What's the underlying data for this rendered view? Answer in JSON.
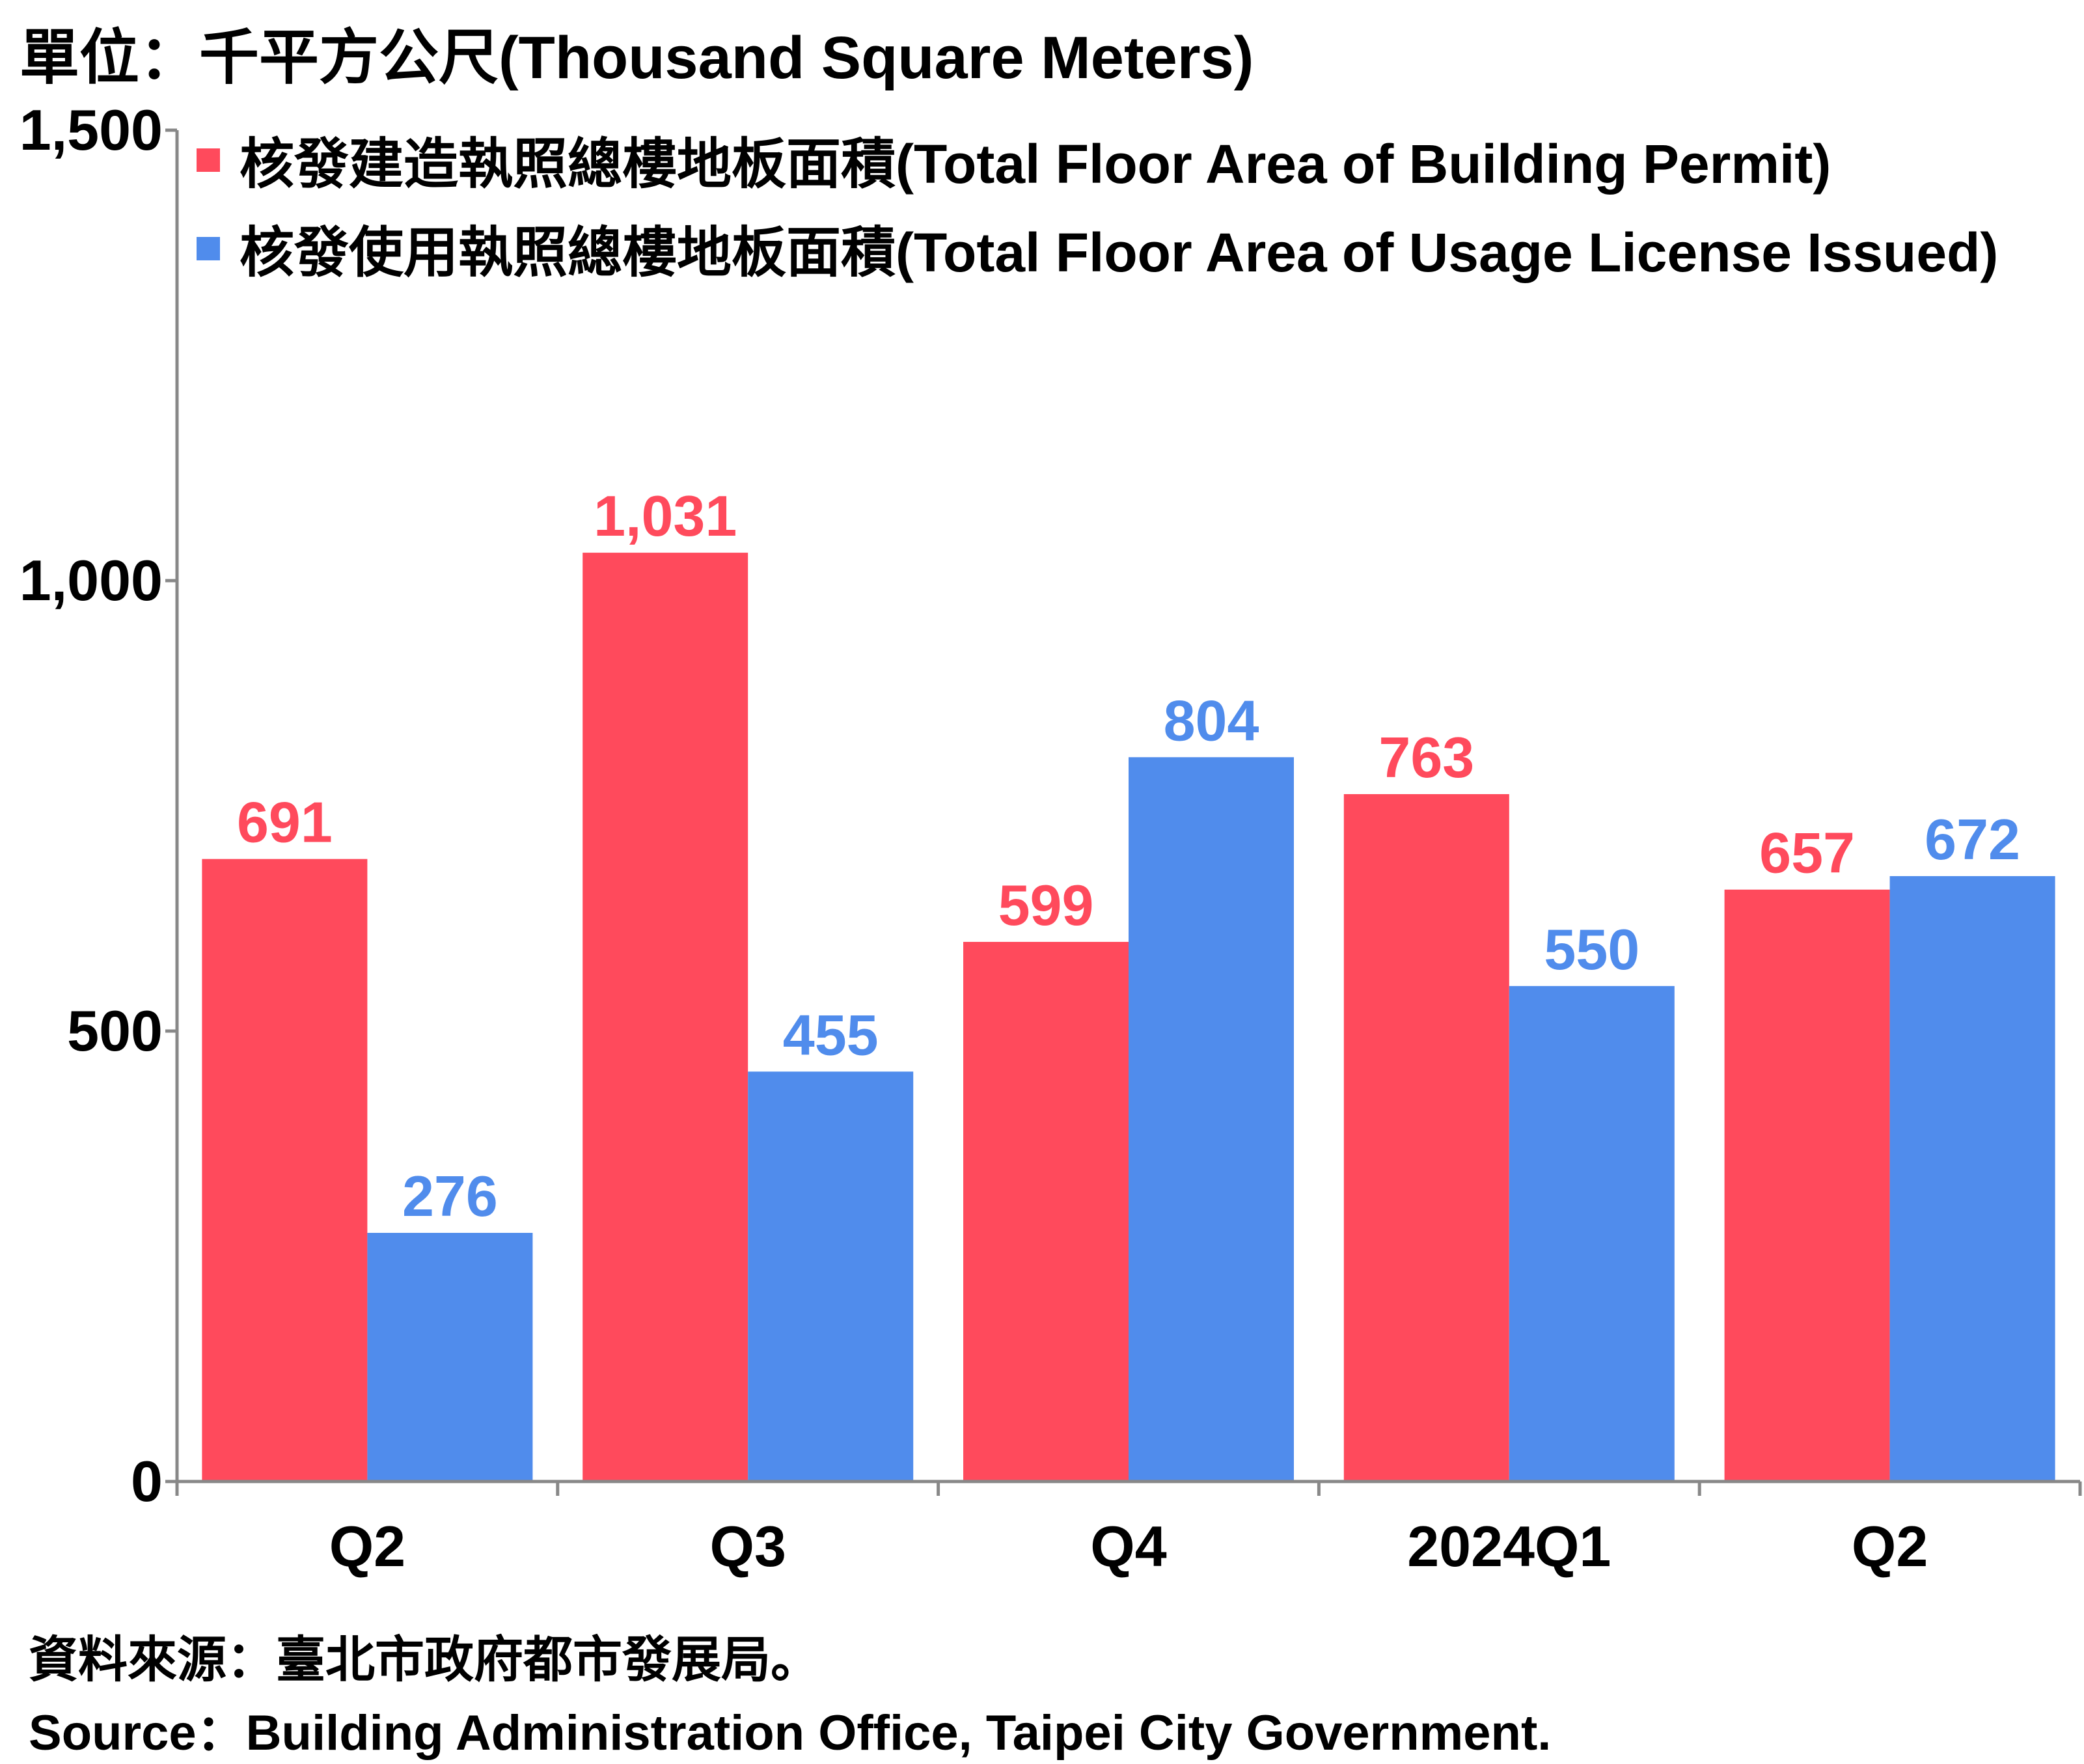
{
  "unit_label": "單位：千平方公尺(Thousand Square Meters)",
  "source": {
    "zh": "資料來源：臺北市政府都市發展局。",
    "en": "Source：Building Administration Office, Taipei City Government."
  },
  "colors": {
    "permit": "#FF4A5C",
    "usage": "#508CEC",
    "axis": "#888888"
  },
  "chart_data": {
    "type": "bar",
    "categories": [
      "Q2",
      "Q3",
      "Q4",
      "2024Q1",
      "Q2"
    ],
    "series": [
      {
        "name": "核發建造執照總樓地板面積(Total Floor Area of Building Permit)",
        "values": [
          691,
          1031,
          599,
          763,
          657
        ],
        "labels": [
          "691",
          "1,031",
          "599",
          "763",
          "657"
        ]
      },
      {
        "name": "核發使用執照總樓地板面積(Total Floor Area of Usage License Issued)",
        "values": [
          276,
          455,
          804,
          550,
          672
        ],
        "labels": [
          "276",
          "455",
          "804",
          "550",
          "672"
        ]
      }
    ],
    "yticks": [
      "0",
      "500",
      "1,000",
      "1,500"
    ],
    "ylim": [
      0,
      1500
    ],
    "legend": "top-left",
    "grid": false
  }
}
